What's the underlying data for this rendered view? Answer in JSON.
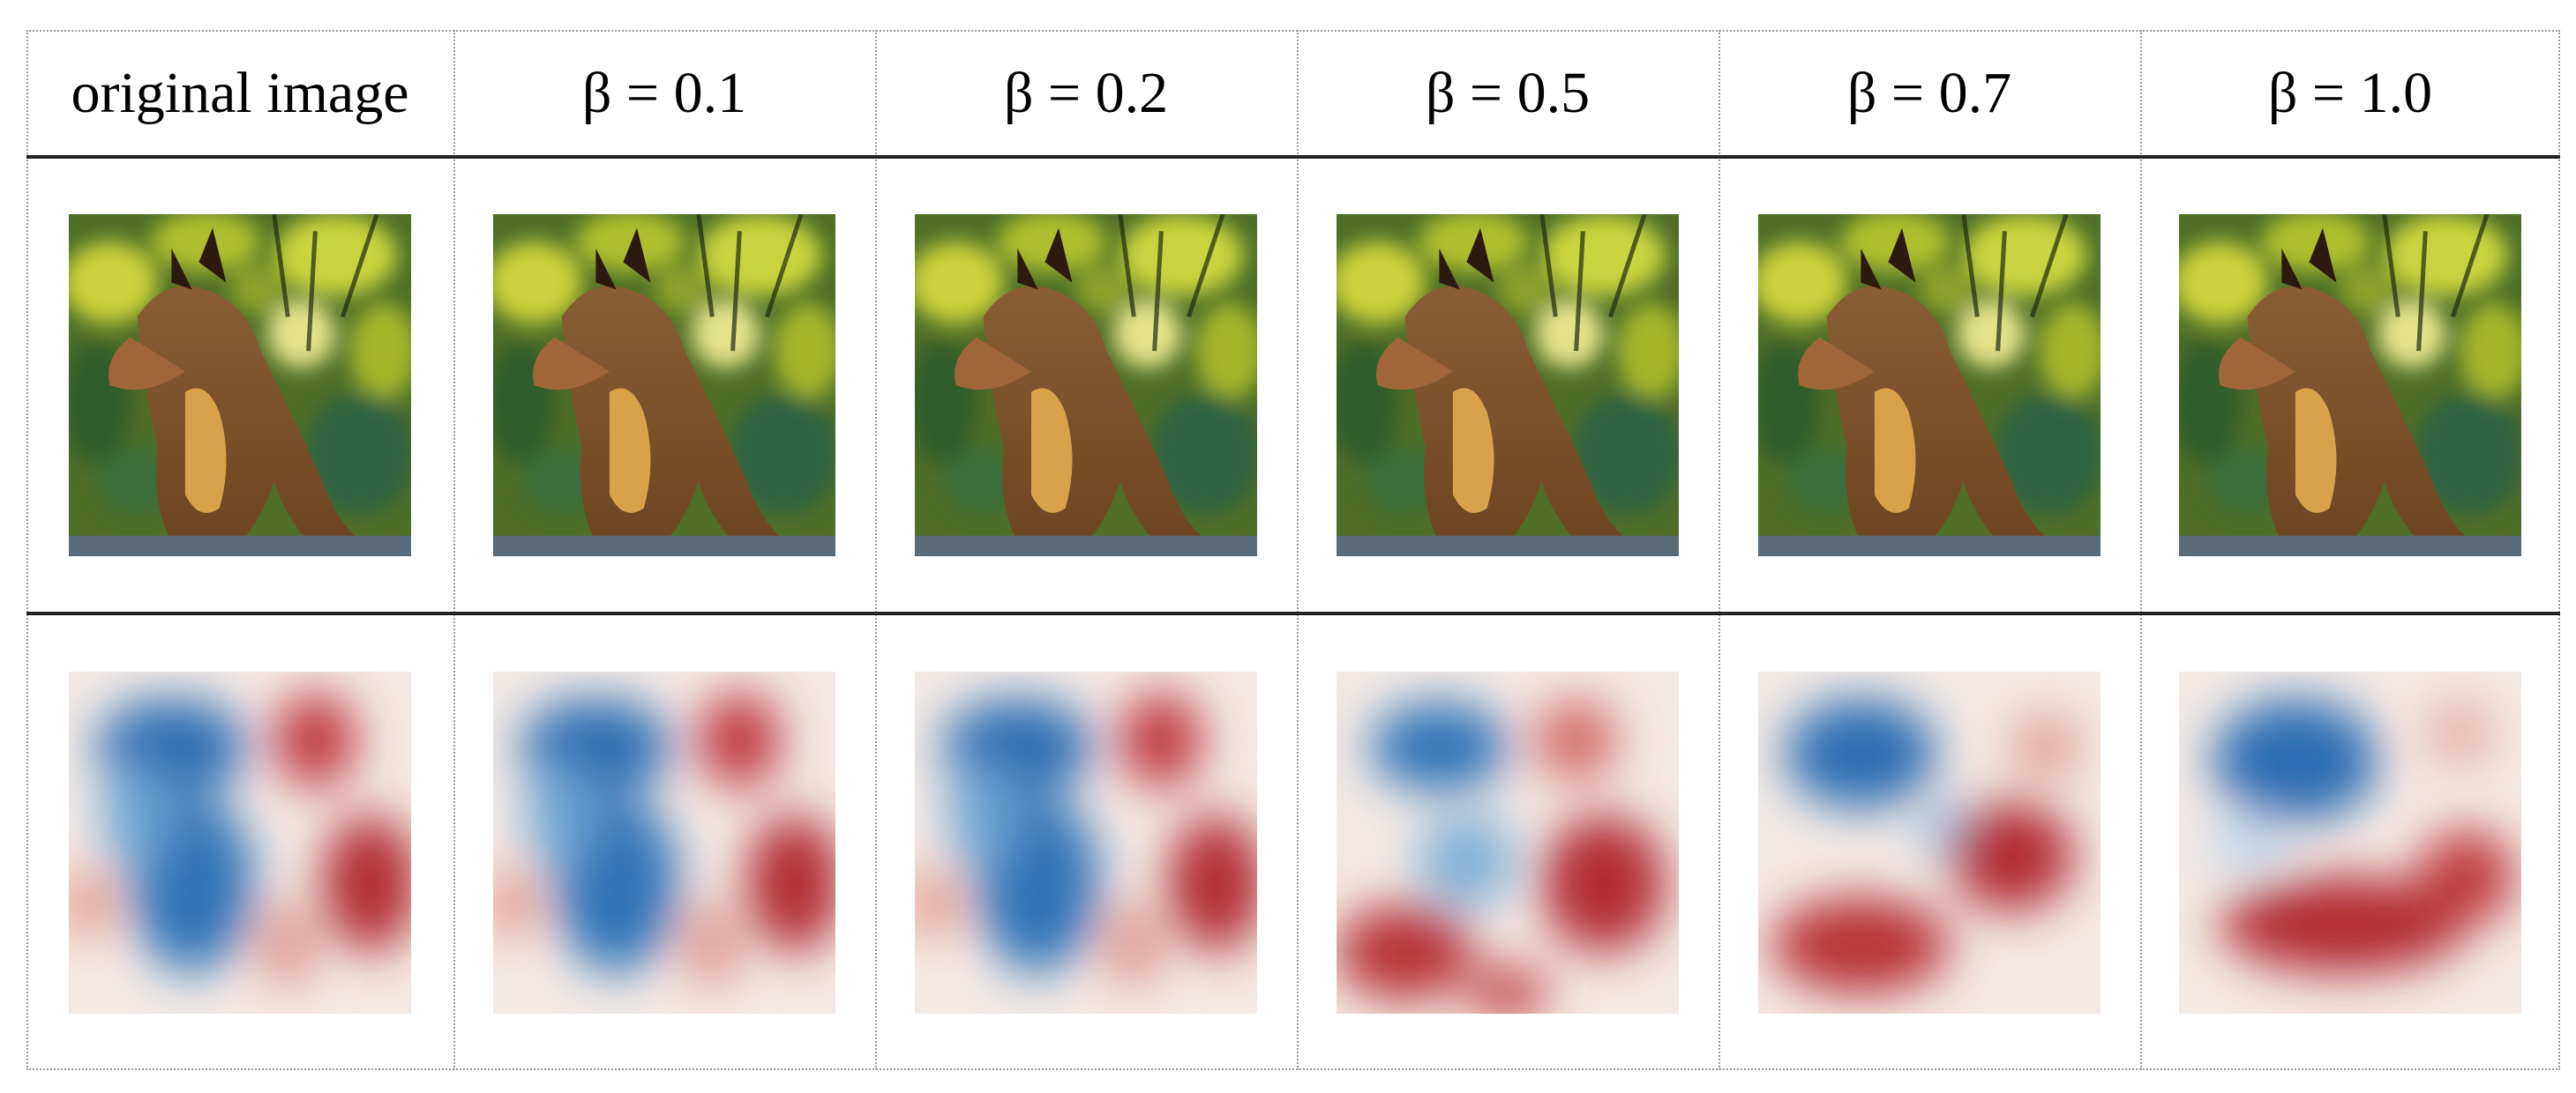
{
  "columns": [
    {
      "label": "original image"
    },
    {
      "label": "β = 0.1"
    },
    {
      "label": "β = 0.2"
    },
    {
      "label": "β = 0.5"
    },
    {
      "label": "β = 0.7"
    },
    {
      "label": "β = 1.0"
    }
  ],
  "rows": {
    "image_row": "photo of a wild cat (caracal) sitting among green foliage",
    "heatmap_row": "saliency heatmaps in red and blue overlaid on the photo"
  },
  "colors": {
    "positive": "#b2182b",
    "negative": "#2166ac",
    "neutral": "#f2ece8",
    "rule": "#222222",
    "cell_border": "#9a9a9a"
  }
}
